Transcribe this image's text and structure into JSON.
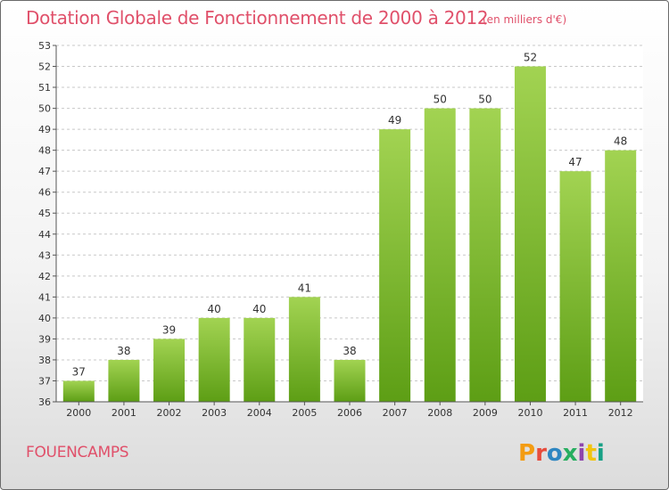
{
  "header": {
    "title": "Dotation Globale de Fonctionnement de 2000 à 2012",
    "unit": "(en milliers d'€)"
  },
  "footer": {
    "commune": "FOUENCAMPS",
    "logo_text": "Proxiti",
    "logo_colors": [
      "#f39c12",
      "#e74c3c",
      "#2e86c1",
      "#27ae60",
      "#8e44ad",
      "#f1c40f",
      "#16a085"
    ]
  },
  "colors": {
    "title": "#e0506a",
    "bar_top": "#a2d352",
    "bar_bottom": "#5d9e15",
    "grid": "#c8c8c8"
  },
  "chart_data": {
    "type": "bar",
    "categories": [
      "2000",
      "2001",
      "2002",
      "2003",
      "2004",
      "2005",
      "2006",
      "2007",
      "2008",
      "2009",
      "2010",
      "2011",
      "2012"
    ],
    "values": [
      37,
      38,
      39,
      40,
      40,
      41,
      38,
      49,
      50,
      50,
      52,
      47,
      48
    ],
    "data_labels": [
      "37",
      "38",
      "39",
      "40",
      "40",
      "41",
      "38",
      "49",
      "50",
      "50",
      "52",
      "47",
      "48"
    ],
    "title": "Dotation Globale de Fonctionnement de 2000 à 2012",
    "xlabel": "",
    "ylabel": "",
    "ylim": [
      36,
      53
    ],
    "yticks": [
      "36",
      "37",
      "38",
      "39",
      "40",
      "41",
      "42",
      "43",
      "44",
      "45",
      "46",
      "47",
      "48",
      "49",
      "50",
      "51",
      "52",
      "53"
    ],
    "grid": true,
    "legend": "none"
  }
}
